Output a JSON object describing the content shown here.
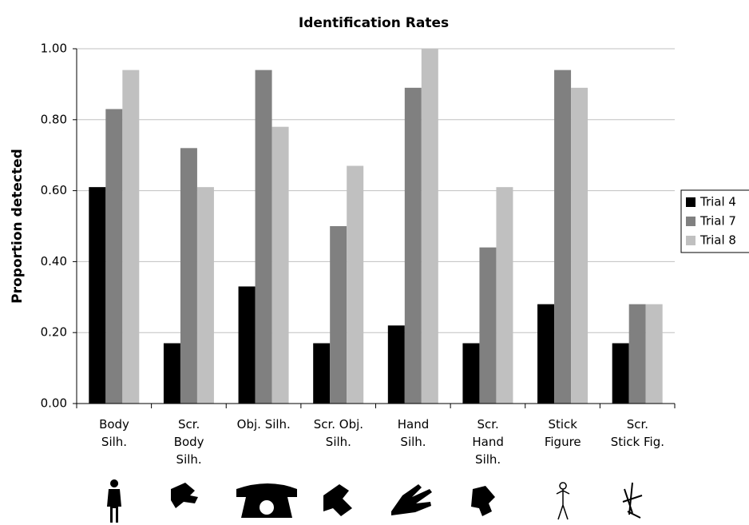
{
  "chart_data": {
    "type": "bar",
    "title": "Identification Rates",
    "y_label": "Proportion detected",
    "categories": [
      "Body\nSilh.",
      "Scr.\nBody\nSilh.",
      "Obj. Silh.",
      "Scr. Obj.\nSilh.",
      "Hand\nSilh.",
      "Scr.\nHand\nSilh.",
      "Stick\nFigure",
      "Scr.\nStick Fig."
    ],
    "series": [
      {
        "name": "Trial 4",
        "color": "#000000",
        "values": [
          0.61,
          0.17,
          0.33,
          0.17,
          0.22,
          0.17,
          0.28,
          0.17
        ]
      },
      {
        "name": "Trial 7",
        "color": "#808080",
        "values": [
          0.83,
          0.72,
          0.94,
          0.5,
          0.89,
          0.44,
          0.94,
          0.28
        ]
      },
      {
        "name": "Trial 8",
        "color": "#c0c0c0",
        "values": [
          0.94,
          0.61,
          0.78,
          0.67,
          1.0,
          0.61,
          0.89,
          0.28
        ]
      }
    ],
    "ylim": [
      0,
      1
    ],
    "yticks": [
      {
        "value": 0,
        "label": "0.00"
      },
      {
        "value": 0.2,
        "label": "0.20"
      },
      {
        "value": 0.4,
        "label": "0.40"
      },
      {
        "value": 0.6,
        "label": "0.60"
      },
      {
        "value": 0.8,
        "label": "0.80"
      },
      {
        "value": 1,
        "label": "1.00"
      }
    ],
    "grid": true,
    "legend": "right"
  }
}
